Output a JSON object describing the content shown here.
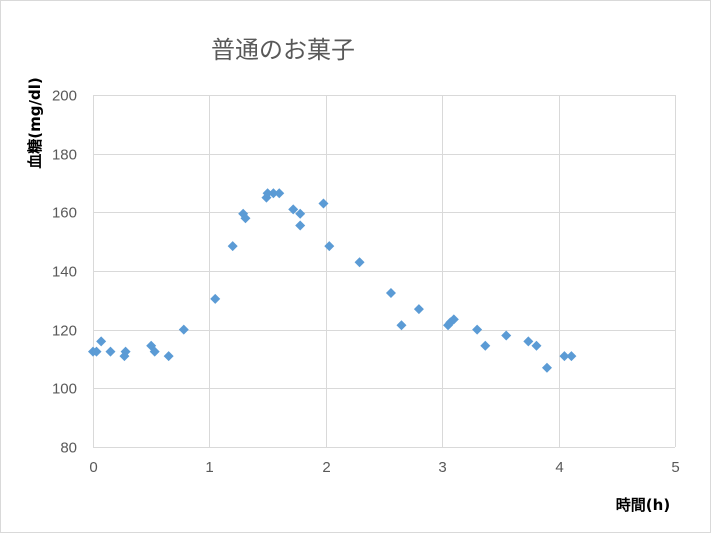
{
  "chart_data": {
    "type": "scatter",
    "title": "普通のお菓子",
    "xlabel": "時間(h)",
    "ylabel": "血糖(mg/dl)",
    "xlim": [
      0,
      5
    ],
    "ylim": [
      80,
      200
    ],
    "x_ticks": [
      0,
      1,
      2,
      3,
      4,
      5
    ],
    "y_ticks": [
      80,
      100,
      120,
      140,
      160,
      180,
      200
    ],
    "x_tick_labels": [
      "0",
      "1",
      "2",
      "3",
      "4",
      "5"
    ],
    "y_tick_labels": [
      "80",
      "100",
      "120",
      "140",
      "160",
      "180",
      "200"
    ],
    "grid": true,
    "legend": "none",
    "marker": "diamond",
    "color": "#5b9bd5",
    "series": [
      {
        "points": [
          [
            0.0,
            112.5
          ],
          [
            0.03,
            112.5
          ],
          [
            0.07,
            116
          ],
          [
            0.15,
            112.5
          ],
          [
            0.27,
            111
          ],
          [
            0.28,
            112.5
          ],
          [
            0.5,
            114.5
          ],
          [
            0.53,
            112.5
          ],
          [
            0.65,
            111
          ],
          [
            0.78,
            120
          ],
          [
            1.05,
            130.5
          ],
          [
            1.2,
            148.5
          ],
          [
            1.29,
            159.5
          ],
          [
            1.31,
            158
          ],
          [
            1.49,
            165
          ],
          [
            1.5,
            166.5
          ],
          [
            1.55,
            166.5
          ],
          [
            1.6,
            166.5
          ],
          [
            1.72,
            161
          ],
          [
            1.78,
            159.5
          ],
          [
            1.78,
            155.5
          ],
          [
            1.98,
            163
          ],
          [
            2.03,
            148.5
          ],
          [
            2.29,
            143
          ],
          [
            2.56,
            132.5
          ],
          [
            2.65,
            121.5
          ],
          [
            2.8,
            127
          ],
          [
            3.05,
            121.5
          ],
          [
            3.07,
            122.5
          ],
          [
            3.1,
            123.5
          ],
          [
            3.3,
            120
          ],
          [
            3.37,
            114.5
          ],
          [
            3.55,
            118
          ],
          [
            3.74,
            116
          ],
          [
            3.81,
            114.5
          ],
          [
            3.9,
            107
          ],
          [
            4.05,
            111
          ],
          [
            4.11,
            111
          ]
        ]
      }
    ]
  }
}
